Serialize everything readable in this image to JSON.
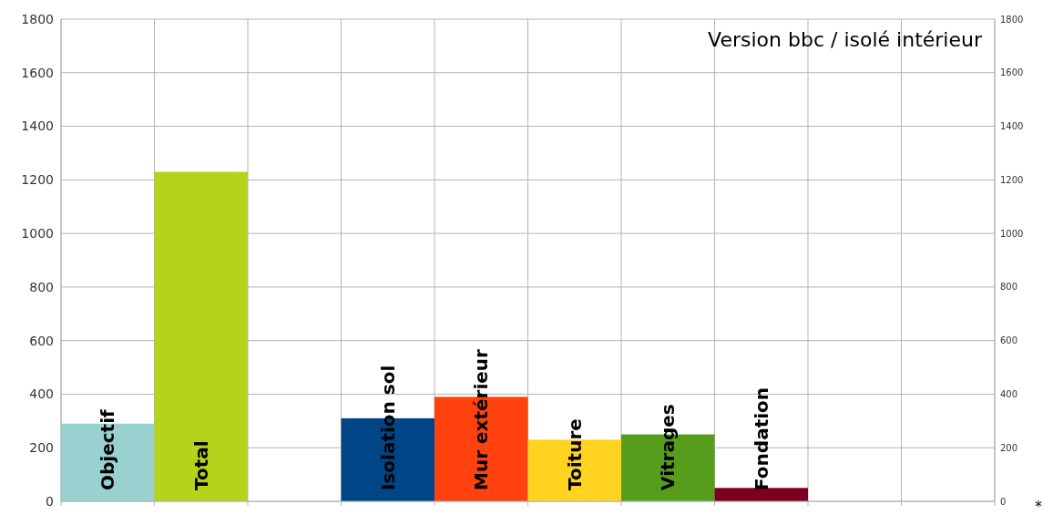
{
  "chart_data": {
    "type": "bar",
    "title": "Version bbc / isolé intérieur",
    "categories": [
      "Objectif",
      "Total",
      null,
      "Isolation sol",
      "Mur extérieur",
      "Toiture",
      "Vitrages",
      "Fondation",
      null,
      null
    ],
    "values": [
      290,
      1230,
      null,
      310,
      390,
      230,
      250,
      50,
      null,
      null
    ],
    "colors": [
      "#99d0d0",
      "#b5d31a",
      null,
      "#004586",
      "#ff420e",
      "#ffd320",
      "#579d1c",
      "#7e0021",
      null,
      null
    ],
    "ylim": [
      0,
      1800
    ],
    "yticks": [
      0,
      200,
      400,
      600,
      800,
      1000,
      1200,
      1400,
      1600,
      1800
    ],
    "y2lim": [
      0,
      1800
    ],
    "y2ticks": [
      0,
      200,
      400,
      600,
      800,
      1000,
      1200,
      1400,
      1600,
      1800
    ],
    "grid": true,
    "annotations": [
      "*"
    ]
  }
}
